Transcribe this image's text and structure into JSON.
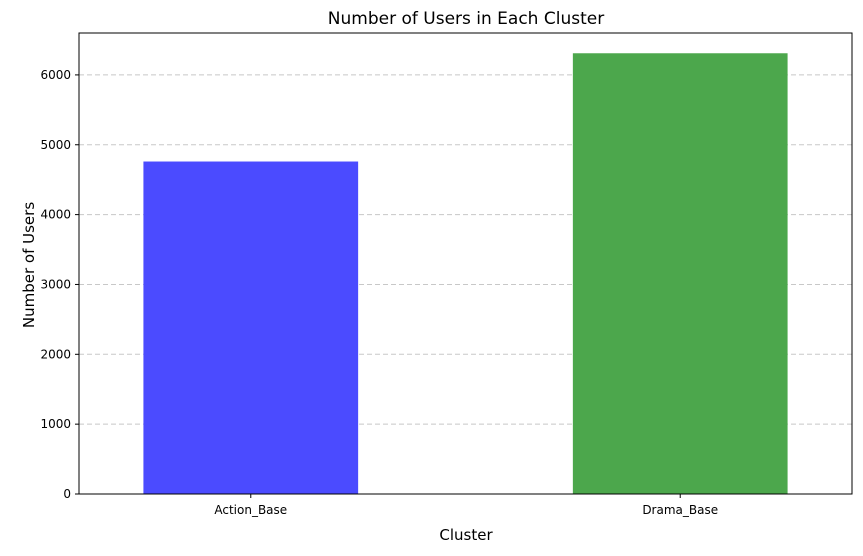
{
  "chart_data": {
    "type": "bar",
    "title": "Number of Users in Each Cluster",
    "xlabel": "Cluster",
    "ylabel": "Number of Users",
    "categories": [
      "Action_Base",
      "Drama_Base"
    ],
    "values": [
      4760,
      6310
    ],
    "colors": [
      "#4b4bff",
      "#4ca74c"
    ],
    "ylim": [
      0,
      6600
    ],
    "yticks": [
      0,
      1000,
      2000,
      3000,
      4000,
      5000,
      6000
    ],
    "grid": "y-dashed",
    "legend": "none"
  }
}
